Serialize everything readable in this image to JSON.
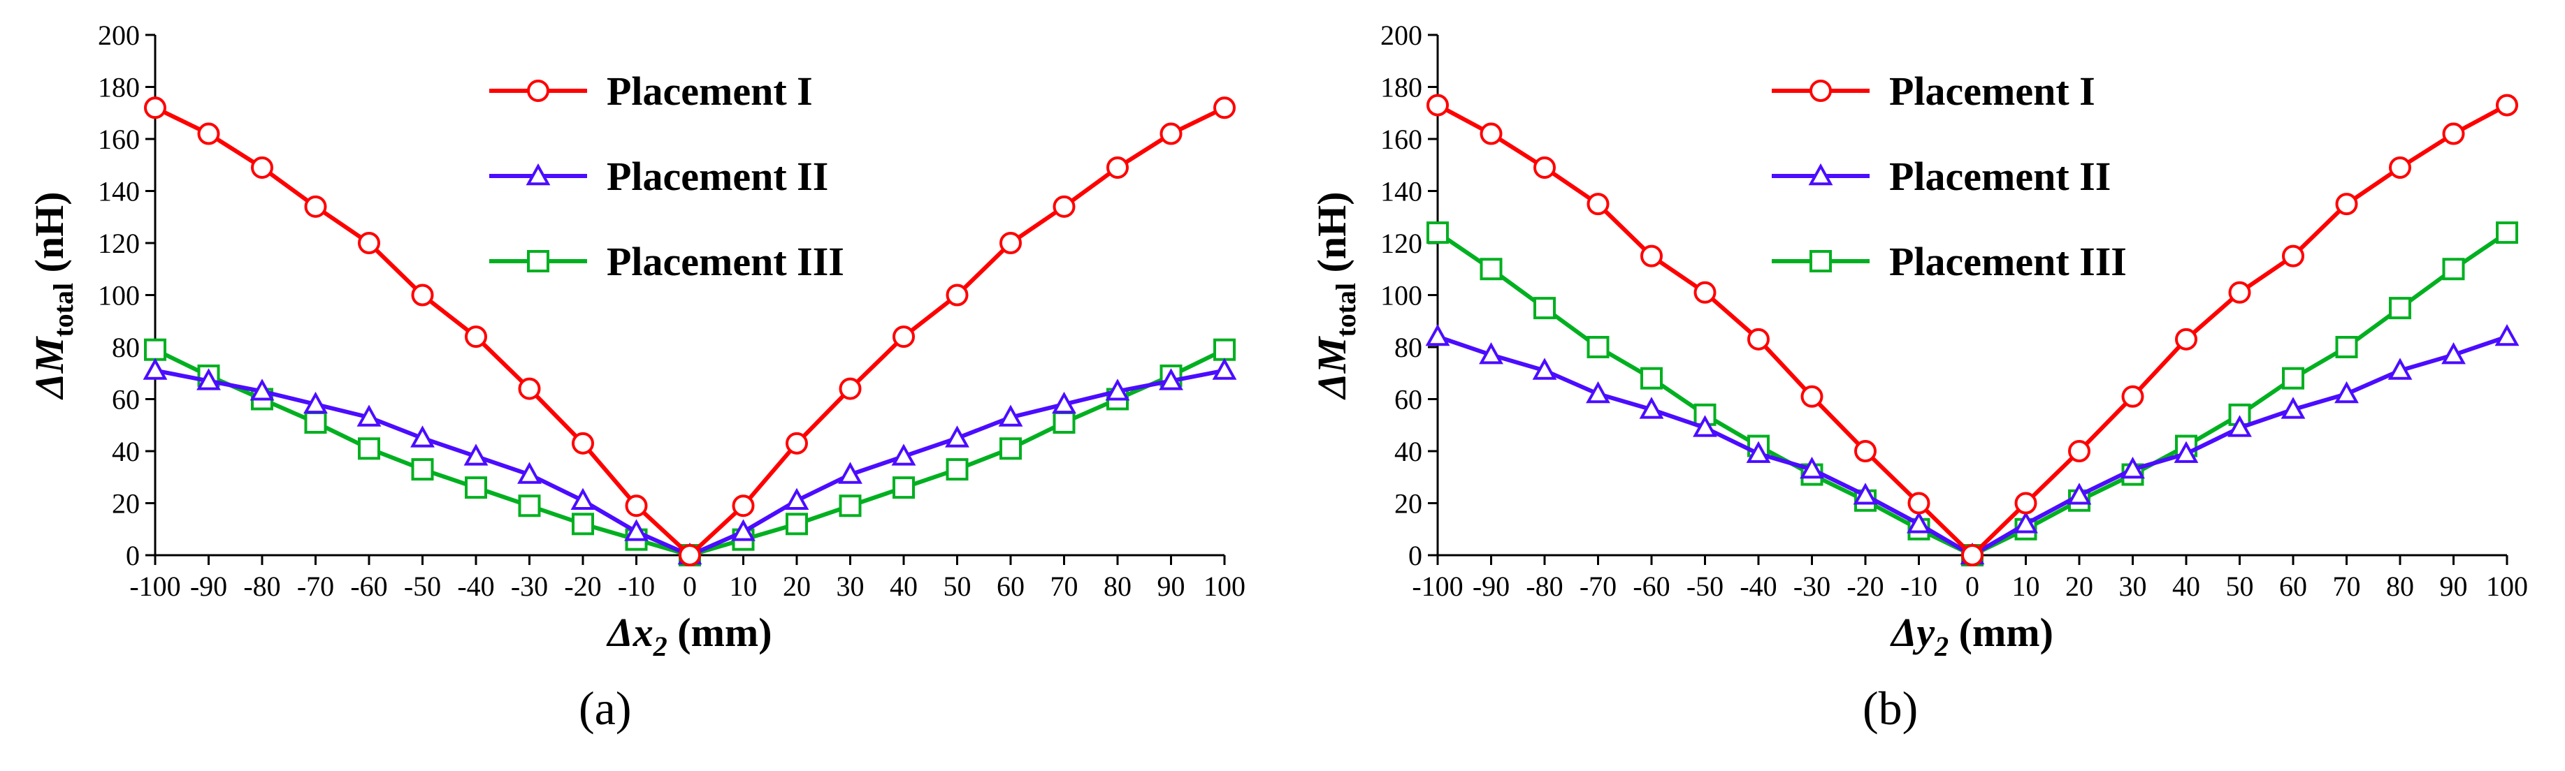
{
  "figure": {
    "captions": [
      "(a)",
      "(b)"
    ]
  },
  "chart_data": [
    {
      "type": "line",
      "xlabel": {
        "main": "Δx",
        "sub": "2",
        "unit": "(mm)"
      },
      "ylabel": {
        "main": "ΔM",
        "sub": "total",
        "unit": "(nH)"
      },
      "x": [
        -100,
        -90,
        -80,
        -70,
        -60,
        -50,
        -40,
        -30,
        -20,
        -10,
        0,
        10,
        20,
        30,
        40,
        50,
        60,
        70,
        80,
        90,
        100
      ],
      "xlim": [
        -100,
        100
      ],
      "ylim": [
        0,
        200
      ],
      "xticks": [
        "-100",
        "-90",
        "-80",
        "-70",
        "-60",
        "-50",
        "-40",
        "-30",
        "-20",
        "-10",
        "0",
        "10",
        "20",
        "30",
        "40",
        "50",
        "60",
        "70",
        "80",
        "90",
        "100"
      ],
      "yticks": [
        "0",
        "20",
        "40",
        "60",
        "80",
        "100",
        "120",
        "140",
        "160",
        "180",
        "200"
      ],
      "grid": false,
      "legend": "top-center",
      "series": [
        {
          "name": "Placement I",
          "color": "#ff0000",
          "marker": "circle",
          "values": [
            172,
            162,
            149,
            134,
            120,
            100,
            84,
            64,
            43,
            19,
            0,
            19,
            43,
            64,
            84,
            100,
            120,
            134,
            149,
            162,
            172
          ]
        },
        {
          "name": "Placement II",
          "color": "#4b0cff",
          "marker": "triangle",
          "values": [
            71,
            67,
            63,
            58,
            53,
            45,
            38,
            31,
            21,
            9,
            0,
            9,
            21,
            31,
            38,
            45,
            53,
            58,
            63,
            67,
            71
          ]
        },
        {
          "name": "Placement III",
          "color": "#00b020",
          "marker": "square",
          "values": [
            79,
            69,
            60,
            51,
            41,
            33,
            26,
            19,
            12,
            6,
            0,
            6,
            12,
            19,
            26,
            33,
            41,
            51,
            60,
            69,
            79
          ]
        }
      ]
    },
    {
      "type": "line",
      "xlabel": {
        "main": "Δy",
        "sub": "2",
        "unit": "(mm)"
      },
      "ylabel": {
        "main": "ΔM",
        "sub": "total",
        "unit": "(nH)"
      },
      "x": [
        -100,
        -90,
        -80,
        -70,
        -60,
        -50,
        -40,
        -30,
        -20,
        -10,
        0,
        10,
        20,
        30,
        40,
        50,
        60,
        70,
        80,
        90,
        100
      ],
      "xlim": [
        -100,
        100
      ],
      "ylim": [
        0,
        200
      ],
      "xticks": [
        "-100",
        "-90",
        "-80",
        "-70",
        "-60",
        "-50",
        "-40",
        "-30",
        "-20",
        "-10",
        "0",
        "10",
        "20",
        "30",
        "40",
        "50",
        "60",
        "70",
        "80",
        "90",
        "100"
      ],
      "yticks": [
        "0",
        "20",
        "40",
        "60",
        "80",
        "100",
        "120",
        "140",
        "160",
        "180",
        "200"
      ],
      "grid": false,
      "legend": "top-center",
      "series": [
        {
          "name": "Placement I",
          "color": "#ff0000",
          "marker": "circle",
          "values": [
            173,
            162,
            149,
            135,
            115,
            101,
            83,
            61,
            40,
            20,
            0,
            20,
            40,
            61,
            83,
            101,
            115,
            135,
            149,
            162,
            173
          ]
        },
        {
          "name": "Placement II",
          "color": "#4b0cff",
          "marker": "triangle",
          "values": [
            84,
            77,
            71,
            62,
            56,
            49,
            39,
            33,
            23,
            12,
            0,
            12,
            23,
            33,
            39,
            49,
            56,
            62,
            71,
            77,
            84
          ]
        },
        {
          "name": "Placement III",
          "color": "#00b020",
          "marker": "square",
          "values": [
            124,
            110,
            95,
            80,
            68,
            54,
            42,
            31,
            21,
            10,
            0,
            10,
            21,
            31,
            42,
            54,
            68,
            80,
            95,
            110,
            124
          ]
        }
      ]
    }
  ]
}
